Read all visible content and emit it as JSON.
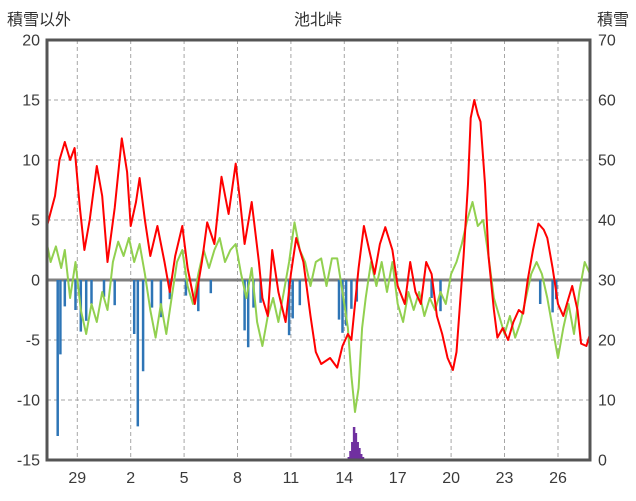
{
  "header": {
    "left_label": "積雪以外",
    "title": "池北峠",
    "right_label": "積雪"
  },
  "colors": {
    "background": "#ffffff",
    "border": "#555555",
    "grid": "#a6a6a6",
    "zero_line": "#808080",
    "axis_text": "#3a3a3a",
    "red_line": "#ff0000",
    "green_line": "#92d050",
    "blue_bars": "#2e75b6",
    "purple_bars": "#7030a0"
  },
  "chart_data": {
    "type": "line",
    "title": "池北峠",
    "left_axis": {
      "label": "積雪以外",
      "min": -15,
      "max": 20,
      "tick_step": 5,
      "ticks": [
        20,
        15,
        10,
        5,
        0,
        -5,
        -10,
        -15
      ]
    },
    "right_axis": {
      "label": "積雪",
      "min": 0,
      "max": 70,
      "tick_step": 10,
      "ticks": [
        70,
        60,
        50,
        40,
        30,
        20,
        10,
        0
      ]
    },
    "x_axis": {
      "range": [
        0,
        30.5
      ],
      "tick_labels": [
        "29",
        "2",
        "5",
        "8",
        "11",
        "14",
        "17",
        "20",
        "23",
        "26"
      ],
      "tick_positions": [
        1.7,
        4.7,
        7.7,
        10.7,
        13.7,
        16.7,
        19.7,
        22.7,
        25.7,
        28.7
      ]
    },
    "grid": true,
    "legend": false,
    "series": [
      {
        "name": "blue-bars",
        "type": "bar",
        "axis": "left",
        "base": 0,
        "color": "#2e75b6",
        "points": [
          [
            0.6,
            -13
          ],
          [
            0.75,
            -6.2
          ],
          [
            1.0,
            -2.2
          ],
          [
            1.6,
            -2.5
          ],
          [
            1.9,
            -4.3
          ],
          [
            2.2,
            -3.4
          ],
          [
            2.5,
            -2.0
          ],
          [
            3.2,
            -1.4
          ],
          [
            3.8,
            -2.1
          ],
          [
            4.9,
            -4.5
          ],
          [
            5.1,
            -12.2
          ],
          [
            5.4,
            -7.6
          ],
          [
            5.9,
            -2.3
          ],
          [
            6.4,
            -3.1
          ],
          [
            6.9,
            -1.6
          ],
          [
            7.8,
            -1.3
          ],
          [
            8.5,
            -2.6
          ],
          [
            9.2,
            -1.1
          ],
          [
            11.1,
            -4.2
          ],
          [
            11.3,
            -5.6
          ],
          [
            11.6,
            -2.3
          ],
          [
            12.0,
            -1.9
          ],
          [
            13.6,
            -4.6
          ],
          [
            13.8,
            -3.2
          ],
          [
            14.2,
            -2.1
          ],
          [
            16.4,
            -3.3
          ],
          [
            16.6,
            -4.4
          ],
          [
            16.8,
            -3.8
          ],
          [
            17.1,
            -2.4
          ],
          [
            17.4,
            -1.8
          ],
          [
            21.6,
            -1.5
          ],
          [
            22.1,
            -2.6
          ],
          [
            27.7,
            -2.0
          ],
          [
            28.4,
            -2.7
          ],
          [
            28.6,
            -1.6
          ]
        ]
      },
      {
        "name": "purple-bars",
        "type": "bar",
        "axis": "right",
        "base": 0,
        "color": "#7030a0",
        "points": [
          [
            16.95,
            0.5
          ],
          [
            17.05,
            1.5
          ],
          [
            17.15,
            3
          ],
          [
            17.25,
            5.5
          ],
          [
            17.35,
            4.5
          ],
          [
            17.45,
            3
          ],
          [
            17.55,
            2
          ],
          [
            17.65,
            1
          ],
          [
            17.75,
            0.5
          ]
        ]
      },
      {
        "name": "green-line",
        "type": "line",
        "axis": "left",
        "color": "#92d050",
        "points": [
          [
            0,
            3
          ],
          [
            0.2,
            1.5
          ],
          [
            0.5,
            2.8
          ],
          [
            0.8,
            1.0
          ],
          [
            1.0,
            2.5
          ],
          [
            1.3,
            -1.5
          ],
          [
            1.6,
            1.5
          ],
          [
            1.9,
            -2.5
          ],
          [
            2.2,
            -4.5
          ],
          [
            2.5,
            -2
          ],
          [
            2.8,
            -3.5
          ],
          [
            3.1,
            -1
          ],
          [
            3.4,
            -2.5
          ],
          [
            3.7,
            1.5
          ],
          [
            4.0,
            3.2
          ],
          [
            4.3,
            2.0
          ],
          [
            4.6,
            3.5
          ],
          [
            4.9,
            1.5
          ],
          [
            5.2,
            3.0
          ],
          [
            5.5,
            0.5
          ],
          [
            5.8,
            -2.5
          ],
          [
            6.1,
            -4.8
          ],
          [
            6.4,
            -2
          ],
          [
            6.7,
            -4.5
          ],
          [
            7.0,
            -1.5
          ],
          [
            7.3,
            1.5
          ],
          [
            7.6,
            2.5
          ],
          [
            7.9,
            -0.5
          ],
          [
            8.2,
            -2
          ],
          [
            8.5,
            0.5
          ],
          [
            8.8,
            2.5
          ],
          [
            9.1,
            1.0
          ],
          [
            9.4,
            2.5
          ],
          [
            9.7,
            3.5
          ],
          [
            10.0,
            1.5
          ],
          [
            10.3,
            2.5
          ],
          [
            10.6,
            3.0
          ],
          [
            10.9,
            0.5
          ],
          [
            11.2,
            -1.5
          ],
          [
            11.5,
            1.0
          ],
          [
            11.8,
            -3.5
          ],
          [
            12.1,
            -5.5
          ],
          [
            12.4,
            -3
          ],
          [
            12.7,
            -1.5
          ],
          [
            13.0,
            -3.5
          ],
          [
            13.3,
            -1
          ],
          [
            13.6,
            1.5
          ],
          [
            13.9,
            4.8
          ],
          [
            14.2,
            2.5
          ],
          [
            14.5,
            1.5
          ],
          [
            14.8,
            -0.5
          ],
          [
            15.1,
            1.5
          ],
          [
            15.4,
            1.8
          ],
          [
            15.7,
            -0.5
          ],
          [
            16.0,
            1.8
          ],
          [
            16.3,
            1.8
          ],
          [
            16.6,
            -1
          ],
          [
            16.9,
            -4
          ],
          [
            17.1,
            -8
          ],
          [
            17.3,
            -11
          ],
          [
            17.5,
            -9
          ],
          [
            17.7,
            -4
          ],
          [
            17.9,
            -1.5
          ],
          [
            18.2,
            1.5
          ],
          [
            18.5,
            -0.5
          ],
          [
            18.8,
            1.5
          ],
          [
            19.1,
            -1
          ],
          [
            19.4,
            1.5
          ],
          [
            19.7,
            -2
          ],
          [
            20.0,
            -3.5
          ],
          [
            20.3,
            -1
          ],
          [
            20.6,
            -2.5
          ],
          [
            20.9,
            -1
          ],
          [
            21.2,
            -3
          ],
          [
            21.5,
            -1.5
          ],
          [
            21.8,
            -2.5
          ],
          [
            22.1,
            -1
          ],
          [
            22.4,
            -2
          ],
          [
            22.7,
            0.5
          ],
          [
            23.0,
            1.5
          ],
          [
            23.3,
            3
          ],
          [
            23.6,
            5
          ],
          [
            23.9,
            6.5
          ],
          [
            24.2,
            4.5
          ],
          [
            24.5,
            5
          ],
          [
            24.8,
            2
          ],
          [
            25.1,
            -1.5
          ],
          [
            25.4,
            -3
          ],
          [
            25.7,
            -4.5
          ],
          [
            26.0,
            -3
          ],
          [
            26.3,
            -4.8
          ],
          [
            26.6,
            -3.5
          ],
          [
            26.9,
            -1.5
          ],
          [
            27.2,
            0.5
          ],
          [
            27.5,
            1.5
          ],
          [
            27.8,
            0.5
          ],
          [
            28.1,
            -1.5
          ],
          [
            28.4,
            -4
          ],
          [
            28.7,
            -6.5
          ],
          [
            29.0,
            -4
          ],
          [
            29.3,
            -2
          ],
          [
            29.6,
            -4.5
          ],
          [
            29.9,
            -1
          ],
          [
            30.2,
            1.5
          ],
          [
            30.5,
            0.5
          ]
        ]
      },
      {
        "name": "red-line",
        "type": "line",
        "axis": "left",
        "color": "#ff0000",
        "points": [
          [
            0,
            4.5
          ],
          [
            0.45,
            7
          ],
          [
            0.7,
            10
          ],
          [
            1.0,
            11.5
          ],
          [
            1.3,
            10
          ],
          [
            1.55,
            11
          ],
          [
            1.85,
            6
          ],
          [
            2.1,
            2.5
          ],
          [
            2.4,
            5
          ],
          [
            2.8,
            9.5
          ],
          [
            3.1,
            7
          ],
          [
            3.4,
            1.5
          ],
          [
            3.8,
            6
          ],
          [
            4.2,
            11.8
          ],
          [
            4.5,
            9
          ],
          [
            4.7,
            4.5
          ],
          [
            5.0,
            6.5
          ],
          [
            5.2,
            8.5
          ],
          [
            5.5,
            5
          ],
          [
            5.8,
            2
          ],
          [
            6.2,
            4.5
          ],
          [
            6.6,
            1.5
          ],
          [
            6.9,
            -1
          ],
          [
            7.2,
            2
          ],
          [
            7.6,
            4.5
          ],
          [
            7.9,
            1
          ],
          [
            8.3,
            -2
          ],
          [
            8.7,
            1.5
          ],
          [
            9.0,
            4.8
          ],
          [
            9.4,
            3
          ],
          [
            9.8,
            8.6
          ],
          [
            10.2,
            5.5
          ],
          [
            10.6,
            9.7
          ],
          [
            10.85,
            6.5
          ],
          [
            11.1,
            3
          ],
          [
            11.5,
            6.5
          ],
          [
            11.9,
            1.5
          ],
          [
            12.1,
            -1.5
          ],
          [
            12.4,
            -3
          ],
          [
            12.65,
            2.5
          ],
          [
            13.0,
            -1
          ],
          [
            13.4,
            -3.5
          ],
          [
            13.7,
            0.5
          ],
          [
            14.0,
            3.5
          ],
          [
            14.4,
            1.5
          ],
          [
            14.8,
            -3
          ],
          [
            15.1,
            -6
          ],
          [
            15.4,
            -7
          ],
          [
            15.9,
            -6.5
          ],
          [
            16.3,
            -7.3
          ],
          [
            16.6,
            -5.5
          ],
          [
            16.9,
            -4.5
          ],
          [
            17.1,
            -5
          ],
          [
            17.5,
            1
          ],
          [
            17.8,
            4.5
          ],
          [
            18.1,
            2.5
          ],
          [
            18.4,
            0.5
          ],
          [
            18.7,
            3
          ],
          [
            19.0,
            4.4
          ],
          [
            19.4,
            2.5
          ],
          [
            19.7,
            -0.5
          ],
          [
            20.1,
            -2
          ],
          [
            20.4,
            1.5
          ],
          [
            20.7,
            -1
          ],
          [
            21.0,
            -2
          ],
          [
            21.3,
            1.5
          ],
          [
            21.6,
            0.5
          ],
          [
            21.9,
            -3
          ],
          [
            22.2,
            -4.5
          ],
          [
            22.5,
            -6.5
          ],
          [
            22.8,
            -7.5
          ],
          [
            23.0,
            -6
          ],
          [
            23.2,
            -2
          ],
          [
            23.4,
            2
          ],
          [
            23.65,
            8
          ],
          [
            23.8,
            13.5
          ],
          [
            24.0,
            15
          ],
          [
            24.2,
            13.8
          ],
          [
            24.35,
            13.2
          ],
          [
            24.6,
            8
          ],
          [
            24.8,
            2
          ],
          [
            25.1,
            -2.5
          ],
          [
            25.3,
            -4.8
          ],
          [
            25.6,
            -4
          ],
          [
            25.9,
            -5
          ],
          [
            26.2,
            -3.5
          ],
          [
            26.5,
            -2.5
          ],
          [
            26.75,
            -2.8
          ],
          [
            27.0,
            0
          ],
          [
            27.3,
            2.5
          ],
          [
            27.6,
            4.7
          ],
          [
            27.9,
            4.2
          ],
          [
            28.1,
            3.5
          ],
          [
            28.4,
            1
          ],
          [
            28.7,
            -2
          ],
          [
            29.0,
            -3
          ],
          [
            29.3,
            -1.5
          ],
          [
            29.5,
            -0.5
          ],
          [
            29.8,
            -2.5
          ],
          [
            30.0,
            -5.3
          ],
          [
            30.3,
            -5.5
          ],
          [
            30.5,
            -4.5
          ]
        ]
      }
    ]
  }
}
